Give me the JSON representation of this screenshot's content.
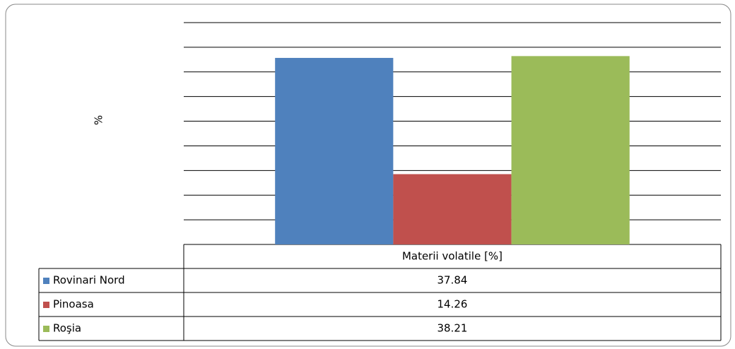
{
  "chart_data": {
    "type": "bar",
    "y_label": "%",
    "categories": [
      "Materii volatile [%]"
    ],
    "series": [
      {
        "name": "Rovinari Nord",
        "color": "#4f81bd",
        "values": [
          37.84
        ]
      },
      {
        "name": "Pinoasa",
        "color": "#c0504d",
        "values": [
          14.26
        ]
      },
      {
        "name": "Roşia",
        "color": "#9bbb59",
        "values": [
          38.21
        ]
      }
    ],
    "ylim": [
      0,
      45
    ],
    "yticks": [
      0,
      5,
      10,
      15,
      20,
      25,
      30,
      35,
      40,
      45
    ],
    "grid": true
  }
}
